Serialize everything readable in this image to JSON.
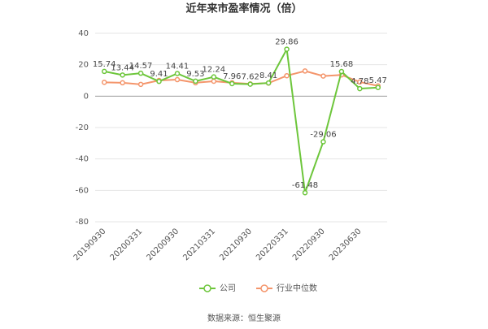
{
  "chart_data": {
    "type": "line",
    "title": "近年来市盈率情况（倍）",
    "categories": [
      "20190930",
      null,
      "20200331",
      null,
      "20200930",
      null,
      "20210331",
      null,
      "20210930",
      null,
      "20220331",
      null,
      "20220930",
      null,
      "20230630",
      null
    ],
    "series": [
      {
        "name": "公司",
        "color": "#6dc63b",
        "values": [
          15.74,
          13.44,
          14.57,
          9.41,
          14.41,
          9.53,
          12.24,
          7.96,
          7.62,
          8.41,
          29.86,
          -61.48,
          -29.06,
          15.68,
          4.78,
          5.47
        ]
      },
      {
        "name": "行业中位数",
        "color": "#f4956b",
        "values": [
          8.8,
          8.5,
          7.5,
          10,
          10.5,
          8.5,
          9.5,
          8.5,
          7.8,
          8.3,
          13,
          16,
          12.8,
          13.5,
          9,
          6.5
        ]
      }
    ],
    "ylim": [
      -80,
      40
    ],
    "yticks": [
      -80,
      -60,
      -40,
      -20,
      0,
      20,
      40
    ],
    "grid": true,
    "legend": "bottom",
    "source": "数据来源：恒生聚源"
  }
}
